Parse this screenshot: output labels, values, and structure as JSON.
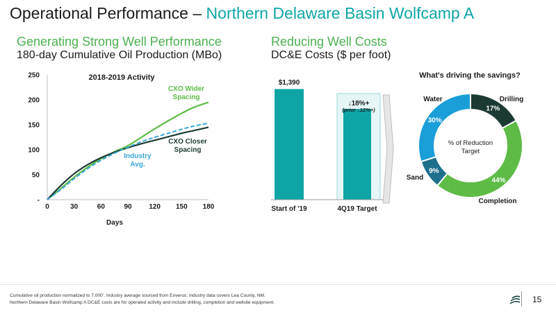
{
  "header": {
    "title_prefix": "Operational Performance – ",
    "title_highlight": "Northern Delaware Basin Wolfcamp A"
  },
  "left_section": {
    "title": "Generating Strong Well Performance",
    "subtitle": "180-day Cumulative Oil Production (MBo)"
  },
  "right_section": {
    "title": "Reducing Well Costs",
    "subtitle": "DC&E Costs ($ per foot)"
  },
  "colors": {
    "teal": "#0fa5a6",
    "green": "#5dbb46",
    "dark": "#1b3a34",
    "navy": "#1e6f8c",
    "sky": "#1a9ed8",
    "dashed": "#39a7d8"
  },
  "chart_data": [
    {
      "type": "line",
      "title": "2018-2019 Activity",
      "xlabel": "Days",
      "ylabel": "",
      "xlim": [
        0,
        180
      ],
      "ylim": [
        0,
        250
      ],
      "x_ticks": [
        "0",
        "30",
        "60",
        "90",
        "120",
        "150",
        "180"
      ],
      "y_ticks": [
        "-",
        "50",
        "100",
        "150",
        "200",
        "250"
      ],
      "grid": false,
      "series": [
        {
          "name": "CXO Wider Spacing",
          "label": "CXO Wider\nSpacing",
          "color": "#5dbb46",
          "style": "solid",
          "x": [
            0,
            15,
            30,
            45,
            60,
            75,
            90,
            105,
            120,
            135,
            150,
            165,
            180
          ],
          "y": [
            0,
            22,
            45,
            65,
            82,
            96,
            108,
            125,
            142,
            158,
            173,
            186,
            195
          ]
        },
        {
          "name": "CXO Closer Spacing",
          "label": "CXO Closer\nSpacing",
          "color": "#1b3a34",
          "style": "solid",
          "x": [
            0,
            15,
            30,
            45,
            60,
            75,
            90,
            105,
            120,
            135,
            150,
            165,
            180
          ],
          "y": [
            0,
            28,
            52,
            70,
            84,
            95,
            104,
            112,
            119,
            126,
            133,
            139,
            145
          ]
        },
        {
          "name": "Industry Avg.",
          "label": "Industry\nAvg.",
          "color": "#39a7d8",
          "style": "dashed",
          "x": [
            0,
            15,
            30,
            45,
            60,
            75,
            90,
            105,
            120,
            135,
            150,
            165,
            180
          ],
          "y": [
            0,
            20,
            42,
            62,
            79,
            93,
            105,
            116,
            125,
            133,
            141,
            148,
            153
          ]
        }
      ]
    },
    {
      "type": "bar",
      "categories": [
        "Start of '19",
        "4Q19 Target"
      ],
      "values": [
        1390,
        1140
      ],
      "data_labels": [
        "$1,390",
        ""
      ],
      "annotation": {
        "main": "↓18%+",
        "sub": "(prior ↓12%+)"
      },
      "ylim": [
        0,
        1500
      ]
    },
    {
      "type": "pie",
      "title": "What's driving the savings?",
      "center_label": [
        "% of Reduction",
        "Target"
      ],
      "slices": [
        {
          "name": "Drilling",
          "value": 17,
          "label": "17%",
          "color": "#1b3a34"
        },
        {
          "name": "Completion",
          "value": 44,
          "label": "44%",
          "color": "#5dbb46"
        },
        {
          "name": "Sand",
          "value": 9,
          "label": "9%",
          "color": "#1e6f8c"
        },
        {
          "name": "Water",
          "value": 30,
          "label": "30%",
          "color": "#1a9ed8"
        }
      ]
    }
  ],
  "footnotes": [
    "Cumulative oil production normalized to 7,000’. Industry average sourced from Enverus; industry data covers Lea County, NM.",
    "Northern Delaware Basin Wolfcamp A DC&E costs are for operated activity and include drilling, completion and wellsite equipment."
  ],
  "page_number": "15",
  "logo_icon": "concho-logo-icon"
}
